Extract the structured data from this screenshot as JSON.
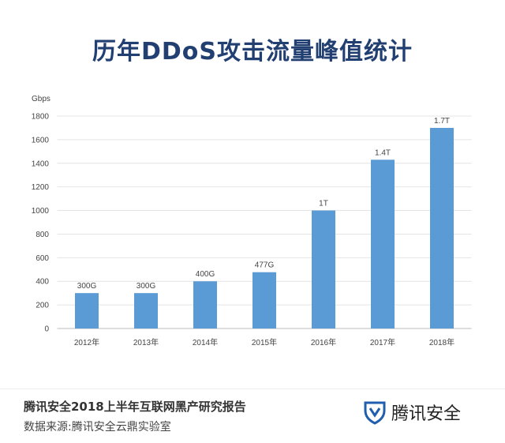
{
  "chart_data": {
    "type": "bar",
    "title": "历年DDoS攻击流量峰值统计",
    "ylabel": "Gbps",
    "xlabel": "",
    "categories": [
      "2012年",
      "2013年",
      "2014年",
      "2015年",
      "2016年",
      "2017年",
      "2018年"
    ],
    "values": [
      300,
      300,
      400,
      477,
      1000,
      1430,
      1700
    ],
    "data_labels": [
      "300G",
      "300G",
      "400G",
      "477G",
      "1T",
      "1.4T",
      "1.7T"
    ],
    "yticks": [
      0,
      200,
      400,
      600,
      800,
      1000,
      1200,
      1400,
      1600,
      1800
    ],
    "ylim": [
      0,
      1800
    ],
    "grid": true,
    "bar_color": "#5b9bd5"
  },
  "footer": {
    "report": "腾讯安全2018上半年互联网黑产研究报告",
    "source": "数据来源:腾讯安全云鼎实验室",
    "logo_text": "腾讯安全"
  }
}
